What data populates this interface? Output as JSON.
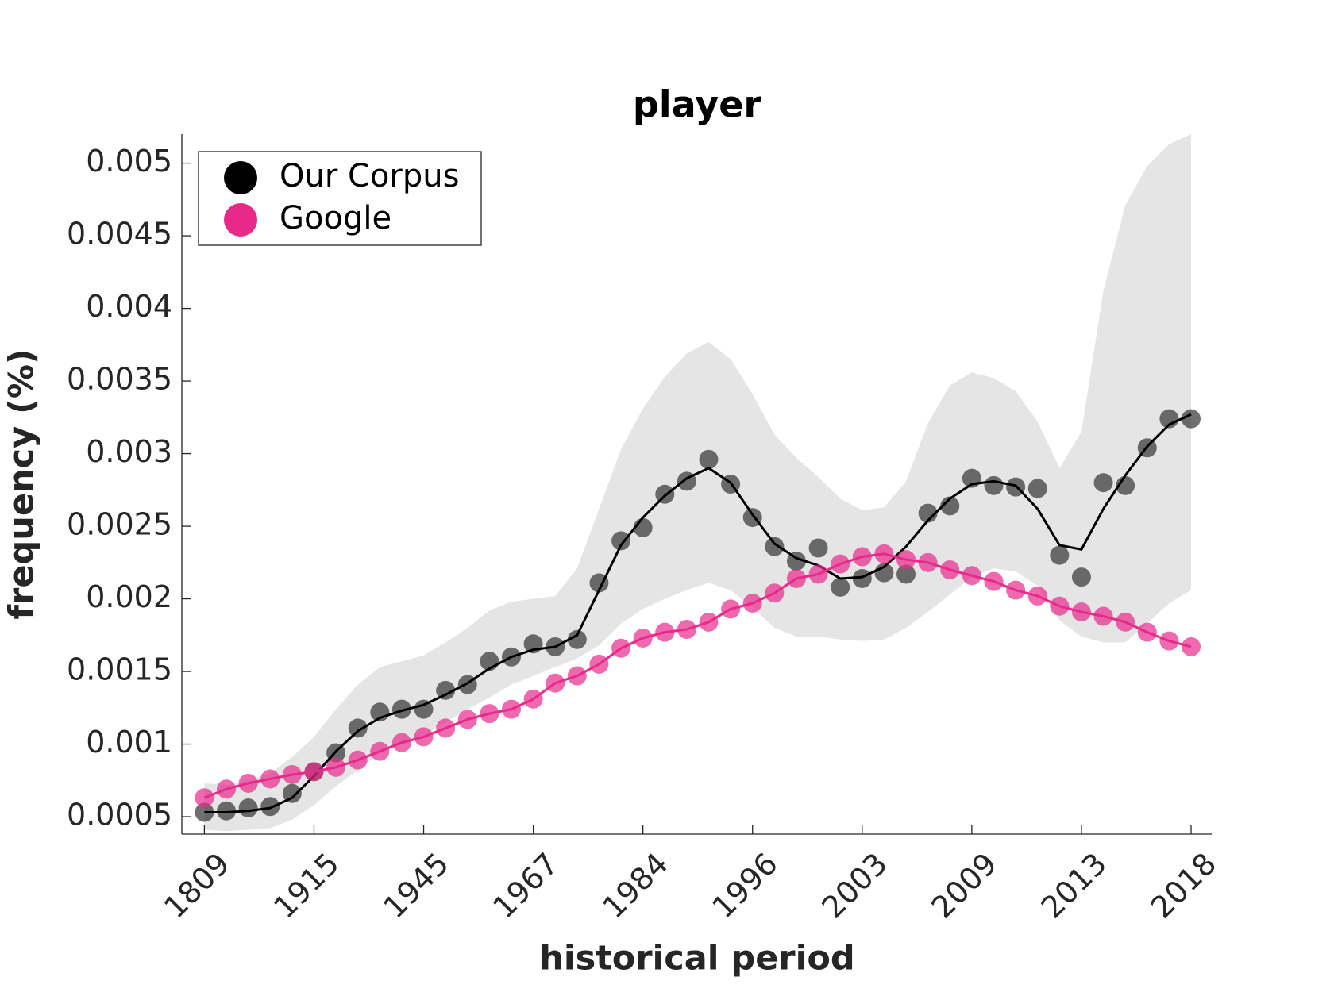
{
  "chart_data": {
    "type": "scatter-line",
    "title": "player",
    "xlabel": "historical period",
    "ylabel": "frequency (%)",
    "categories": [
      "1809",
      null,
      null,
      null,
      null,
      "1915",
      null,
      null,
      null,
      null,
      "1945",
      null,
      null,
      null,
      null,
      "1967",
      null,
      null,
      null,
      null,
      "1984",
      null,
      null,
      null,
      null,
      "1996",
      null,
      null,
      null,
      null,
      "2003",
      null,
      null,
      null,
      null,
      "2009",
      null,
      null,
      null,
      null,
      "2013",
      null,
      null,
      null,
      null,
      "2018"
    ],
    "ylim": [
      0.00038,
      0.0052
    ],
    "yticks": [
      0.0005,
      0.001,
      0.0015,
      0.002,
      0.0025,
      0.003,
      0.0035,
      0.004,
      0.0045,
      0.005
    ],
    "legend": "upper-left",
    "series": [
      {
        "name": "Our Corpus",
        "color": "#000000",
        "band_color": "#e5e5e5",
        "values": [
          0.00053,
          0.00054,
          0.00056,
          0.00057,
          0.00066,
          0.00081,
          0.00094,
          0.00111,
          0.00122,
          0.00124,
          0.00124,
          0.00137,
          0.00141,
          0.00157,
          0.0016,
          0.00169,
          0.00167,
          0.00172,
          0.00211,
          0.0024,
          0.00249,
          0.00272,
          0.00281,
          0.00296,
          0.00279,
          0.00256,
          0.00236,
          0.00226,
          0.00235,
          0.00208,
          0.00214,
          0.00218,
          0.00217,
          0.00259,
          0.00264,
          0.00283,
          0.00278,
          0.00277,
          0.00276,
          0.0023,
          0.00215,
          0.0028,
          0.00278,
          0.00304,
          0.00324,
          0.00324
        ],
        "smooth": [
          0.00053,
          0.00053,
          0.00054,
          0.00056,
          0.00063,
          0.00078,
          0.00095,
          0.00109,
          0.00118,
          0.00123,
          0.00127,
          0.00134,
          0.00142,
          0.00152,
          0.0016,
          0.00165,
          0.00167,
          0.00175,
          0.00206,
          0.00237,
          0.00256,
          0.00271,
          0.00283,
          0.0029,
          0.0028,
          0.00258,
          0.00238,
          0.00228,
          0.00223,
          0.00214,
          0.00215,
          0.00222,
          0.00236,
          0.00254,
          0.00269,
          0.00279,
          0.00281,
          0.00278,
          0.00262,
          0.00237,
          0.00234,
          0.00262,
          0.00285,
          0.00305,
          0.0032,
          0.00327
        ],
        "upper": [
          0.00073,
          0.00072,
          0.00075,
          0.0008,
          0.00091,
          0.00105,
          0.00124,
          0.00141,
          0.00153,
          0.00157,
          0.00161,
          0.0017,
          0.0018,
          0.00192,
          0.00198,
          0.002,
          0.00202,
          0.00221,
          0.00262,
          0.00303,
          0.00331,
          0.00353,
          0.00369,
          0.00377,
          0.00365,
          0.00341,
          0.00313,
          0.00297,
          0.00284,
          0.00269,
          0.00261,
          0.00263,
          0.00281,
          0.00321,
          0.00347,
          0.00356,
          0.00352,
          0.00343,
          0.00322,
          0.0029,
          0.00315,
          0.00412,
          0.00471,
          0.00498,
          0.00513,
          0.0052
        ],
        "lower": [
          0.00041,
          0.0004,
          0.00041,
          0.00042,
          0.00048,
          0.00058,
          0.00071,
          0.00082,
          0.00094,
          0.001,
          0.00106,
          0.00115,
          0.00124,
          0.00132,
          0.00141,
          0.00147,
          0.00153,
          0.00159,
          0.00168,
          0.00183,
          0.00193,
          0.002,
          0.00206,
          0.00211,
          0.00206,
          0.00194,
          0.0018,
          0.00174,
          0.00174,
          0.00172,
          0.00171,
          0.00172,
          0.0018,
          0.00191,
          0.00203,
          0.00215,
          0.00221,
          0.00219,
          0.00209,
          0.00185,
          0.00174,
          0.0017,
          0.0017,
          0.00183,
          0.00197,
          0.00206
        ]
      },
      {
        "name": "Google",
        "color": "#e7298a",
        "values": [
          0.00063,
          0.00069,
          0.00073,
          0.00076,
          0.00079,
          0.00081,
          0.00084,
          0.00089,
          0.00095,
          0.00101,
          0.00105,
          0.00111,
          0.00117,
          0.00121,
          0.00124,
          0.00131,
          0.00142,
          0.00147,
          0.00155,
          0.00166,
          0.00173,
          0.00177,
          0.00179,
          0.00184,
          0.00193,
          0.00197,
          0.00204,
          0.00214,
          0.00217,
          0.00224,
          0.00229,
          0.00231,
          0.00227,
          0.00225,
          0.0022,
          0.00216,
          0.00212,
          0.00206,
          0.00202,
          0.00195,
          0.00191,
          0.00188,
          0.00184,
          0.00177,
          0.00171,
          0.00167
        ]
      }
    ]
  }
}
